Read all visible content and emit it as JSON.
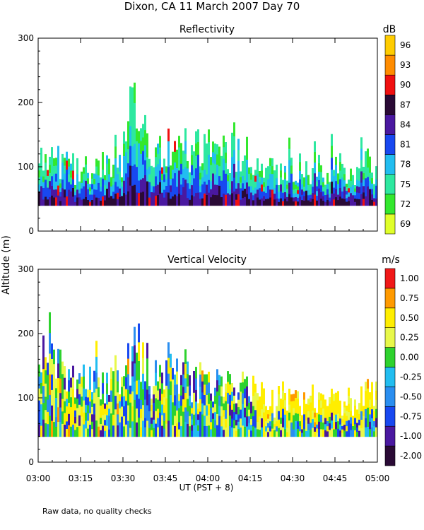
{
  "page_title": "Dixon, CA 11 March 2007  Day  70",
  "ylabel": "Altitude (m)",
  "xlabel": "UT  (PST + 8)",
  "footnote": "Raw data, no quality checks",
  "chart_data": [
    {
      "type": "heatmap",
      "title": "Reflectivity",
      "unit_label": "dB",
      "x_tick_labels": [
        "03:00",
        "03:15",
        "03:30",
        "03:45",
        "04:00",
        "04:15",
        "04:30",
        "04:45",
        "05:00"
      ],
      "x_range": [
        "03:00",
        "05:00"
      ],
      "y_ticks": [
        0,
        100,
        200,
        300
      ],
      "ylim": [
        0,
        300
      ],
      "colorbar": {
        "labels": [
          "69",
          "72",
          "75",
          "78",
          "81",
          "84",
          "87",
          "90",
          "93",
          "96"
        ],
        "colors": [
          "#e0ff2a",
          "#33e82e",
          "#2ee8a0",
          "#22bdf0",
          "#1848f0",
          "#4a18a0",
          "#2a0a35",
          "#f01010",
          "#ff8c00",
          "#ffcc00"
        ]
      },
      "column_top_profile": {
        "x": [
          "03:00",
          "03:10",
          "03:20",
          "03:30",
          "03:34",
          "03:40",
          "03:45",
          "03:55",
          "04:05",
          "04:12",
          "04:20",
          "04:40",
          "05:00"
        ],
        "top_m": [
          160,
          130,
          130,
          150,
          240,
          140,
          170,
          160,
          160,
          150,
          120,
          125,
          130
        ]
      },
      "base_altitude_m": 40
    },
    {
      "type": "heatmap",
      "title": "Vertical Velocity",
      "unit_label": "m/s",
      "x_tick_labels": [
        "03:00",
        "03:15",
        "03:30",
        "03:45",
        "04:00",
        "04:15",
        "04:30",
        "04:45",
        "05:00"
      ],
      "x_range": [
        "03:00",
        "05:00"
      ],
      "y_ticks": [
        0,
        100,
        200,
        300
      ],
      "ylim": [
        0,
        300
      ],
      "colorbar": {
        "labels": [
          "-2.00",
          "-1.00",
          "-0.75",
          "-0.50",
          "-0.25",
          "0.00",
          "0.25",
          "0.50",
          "0.75",
          "1.00"
        ],
        "colors": [
          "#2a0a35",
          "#4a18a0",
          "#1848f0",
          "#2a8ef0",
          "#22bdf0",
          "#2ed22e",
          "#e8f84a",
          "#ffee00",
          "#ff9a00",
          "#f01818"
        ]
      },
      "column_top_profile": {
        "x": [
          "03:00",
          "03:03",
          "03:10",
          "03:20",
          "03:30",
          "03:34",
          "03:40",
          "03:45",
          "03:55",
          "04:05",
          "04:12",
          "04:20",
          "04:40",
          "05:00"
        ],
        "top_m": [
          180,
          240,
          150,
          160,
          170,
          240,
          175,
          200,
          165,
          165,
          150,
          120,
          130,
          130
        ]
      },
      "base_altitude_m": 40
    }
  ]
}
